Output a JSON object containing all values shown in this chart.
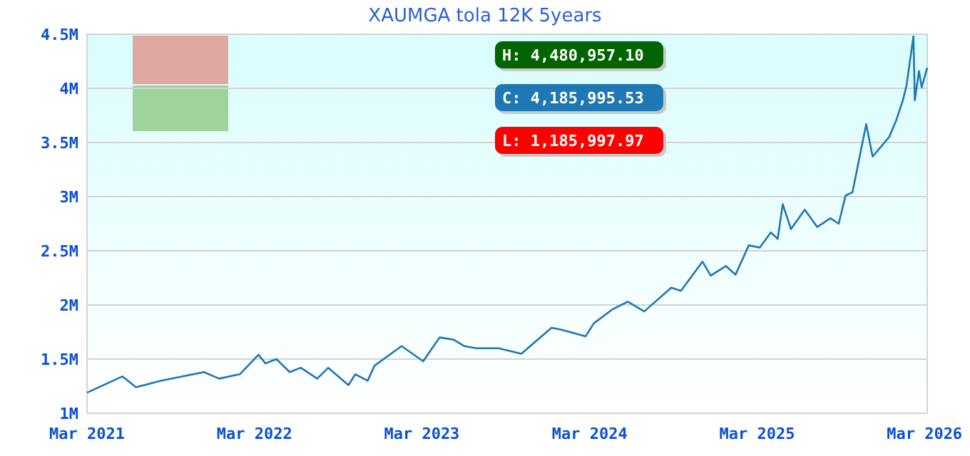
{
  "chart_data": {
    "type": "line",
    "title": "XAUMGA tola 12K 5years",
    "x": [
      "2021-03-01",
      "2021-05-17",
      "2021-06-16",
      "2021-08-08",
      "2021-11-11",
      "2021-12-14",
      "2022-01-28",
      "2022-03-10",
      "2022-03-25",
      "2022-04-18",
      "2022-05-17",
      "2022-06-10",
      "2022-07-16",
      "2022-08-09",
      "2022-09-22",
      "2022-10-07",
      "2022-11-03",
      "2022-11-18",
      "2023-01-16",
      "2023-03-04",
      "2023-04-09",
      "2023-05-09",
      "2023-06-02",
      "2023-06-28",
      "2023-08-15",
      "2023-10-04",
      "2023-12-09",
      "2024-01-01",
      "2024-02-21",
      "2024-03-10",
      "2024-04-20",
      "2024-05-23",
      "2024-06-28",
      "2024-08-26",
      "2024-09-16",
      "2024-11-02",
      "2024-11-20",
      "2024-12-23",
      "2025-01-13",
      "2025-02-11",
      "2025-03-07",
      "2025-03-31",
      "2025-04-15",
      "2025-04-26",
      "2025-05-14",
      "2025-06-13",
      "2025-07-10",
      "2025-08-08",
      "2025-08-26",
      "2025-09-10",
      "2025-09-25",
      "2025-10-25",
      "2025-11-08",
      "2025-12-14",
      "2025-12-29",
      "2026-01-13",
      "2026-01-21",
      "2026-02-05",
      "2026-02-08",
      "2026-02-17",
      "2026-02-23",
      "2026-03-07"
    ],
    "series": [
      {
        "color": "#1f77b4",
        "values": [
          1190000,
          1340000,
          1240000,
          1300000,
          1380000,
          1320000,
          1360000,
          1540000,
          1460000,
          1500000,
          1380000,
          1420000,
          1320000,
          1420000,
          1260000,
          1360000,
          1300000,
          1440000,
          1620000,
          1480000,
          1700000,
          1680000,
          1620000,
          1600000,
          1600000,
          1550000,
          1790000,
          1770000,
          1710000,
          1830000,
          1960000,
          2030000,
          1940000,
          2160000,
          2130000,
          2400000,
          2270000,
          2360000,
          2280000,
          2550000,
          2530000,
          2670000,
          2610000,
          2930000,
          2700000,
          2880000,
          2720000,
          2800000,
          2750000,
          3010000,
          3040000,
          3670000,
          3370000,
          3550000,
          3700000,
          3890000,
          4030000,
          4480000,
          3890000,
          4160000,
          4010000,
          4190000
        ]
      }
    ],
    "xlim": [
      "2021-03-01",
      "2026-03-07"
    ],
    "xticks": [
      {
        "value": "2021-03-01",
        "label": "Mar 2021"
      },
      {
        "value": "2022-03-01",
        "label": "Mar 2022"
      },
      {
        "value": "2023-03-01",
        "label": "Mar 2023"
      },
      {
        "value": "2024-03-01",
        "label": "Mar 2024"
      },
      {
        "value": "2025-03-01",
        "label": "Mar 2025"
      },
      {
        "value": "2026-03-01",
        "label": "Mar 2026"
      }
    ],
    "ylim": [
      1000000,
      4500000
    ],
    "yticks": [
      {
        "value": 1000000,
        "label": "1M"
      },
      {
        "value": 1500000,
        "label": "1.5M"
      },
      {
        "value": 2000000,
        "label": "2M"
      },
      {
        "value": 2500000,
        "label": "2.5M"
      },
      {
        "value": 3000000,
        "label": "3M"
      },
      {
        "value": 3500000,
        "label": "3.5M"
      },
      {
        "value": 4000000,
        "label": "4M"
      },
      {
        "value": 4500000,
        "label": "4.5M"
      }
    ],
    "grid": "y",
    "marker": "none",
    "line_style": "solid",
    "annotations": [
      "H: 4,480,957.10",
      "C: 4,185,995.53",
      "L: 1,185,997.97"
    ]
  }
}
